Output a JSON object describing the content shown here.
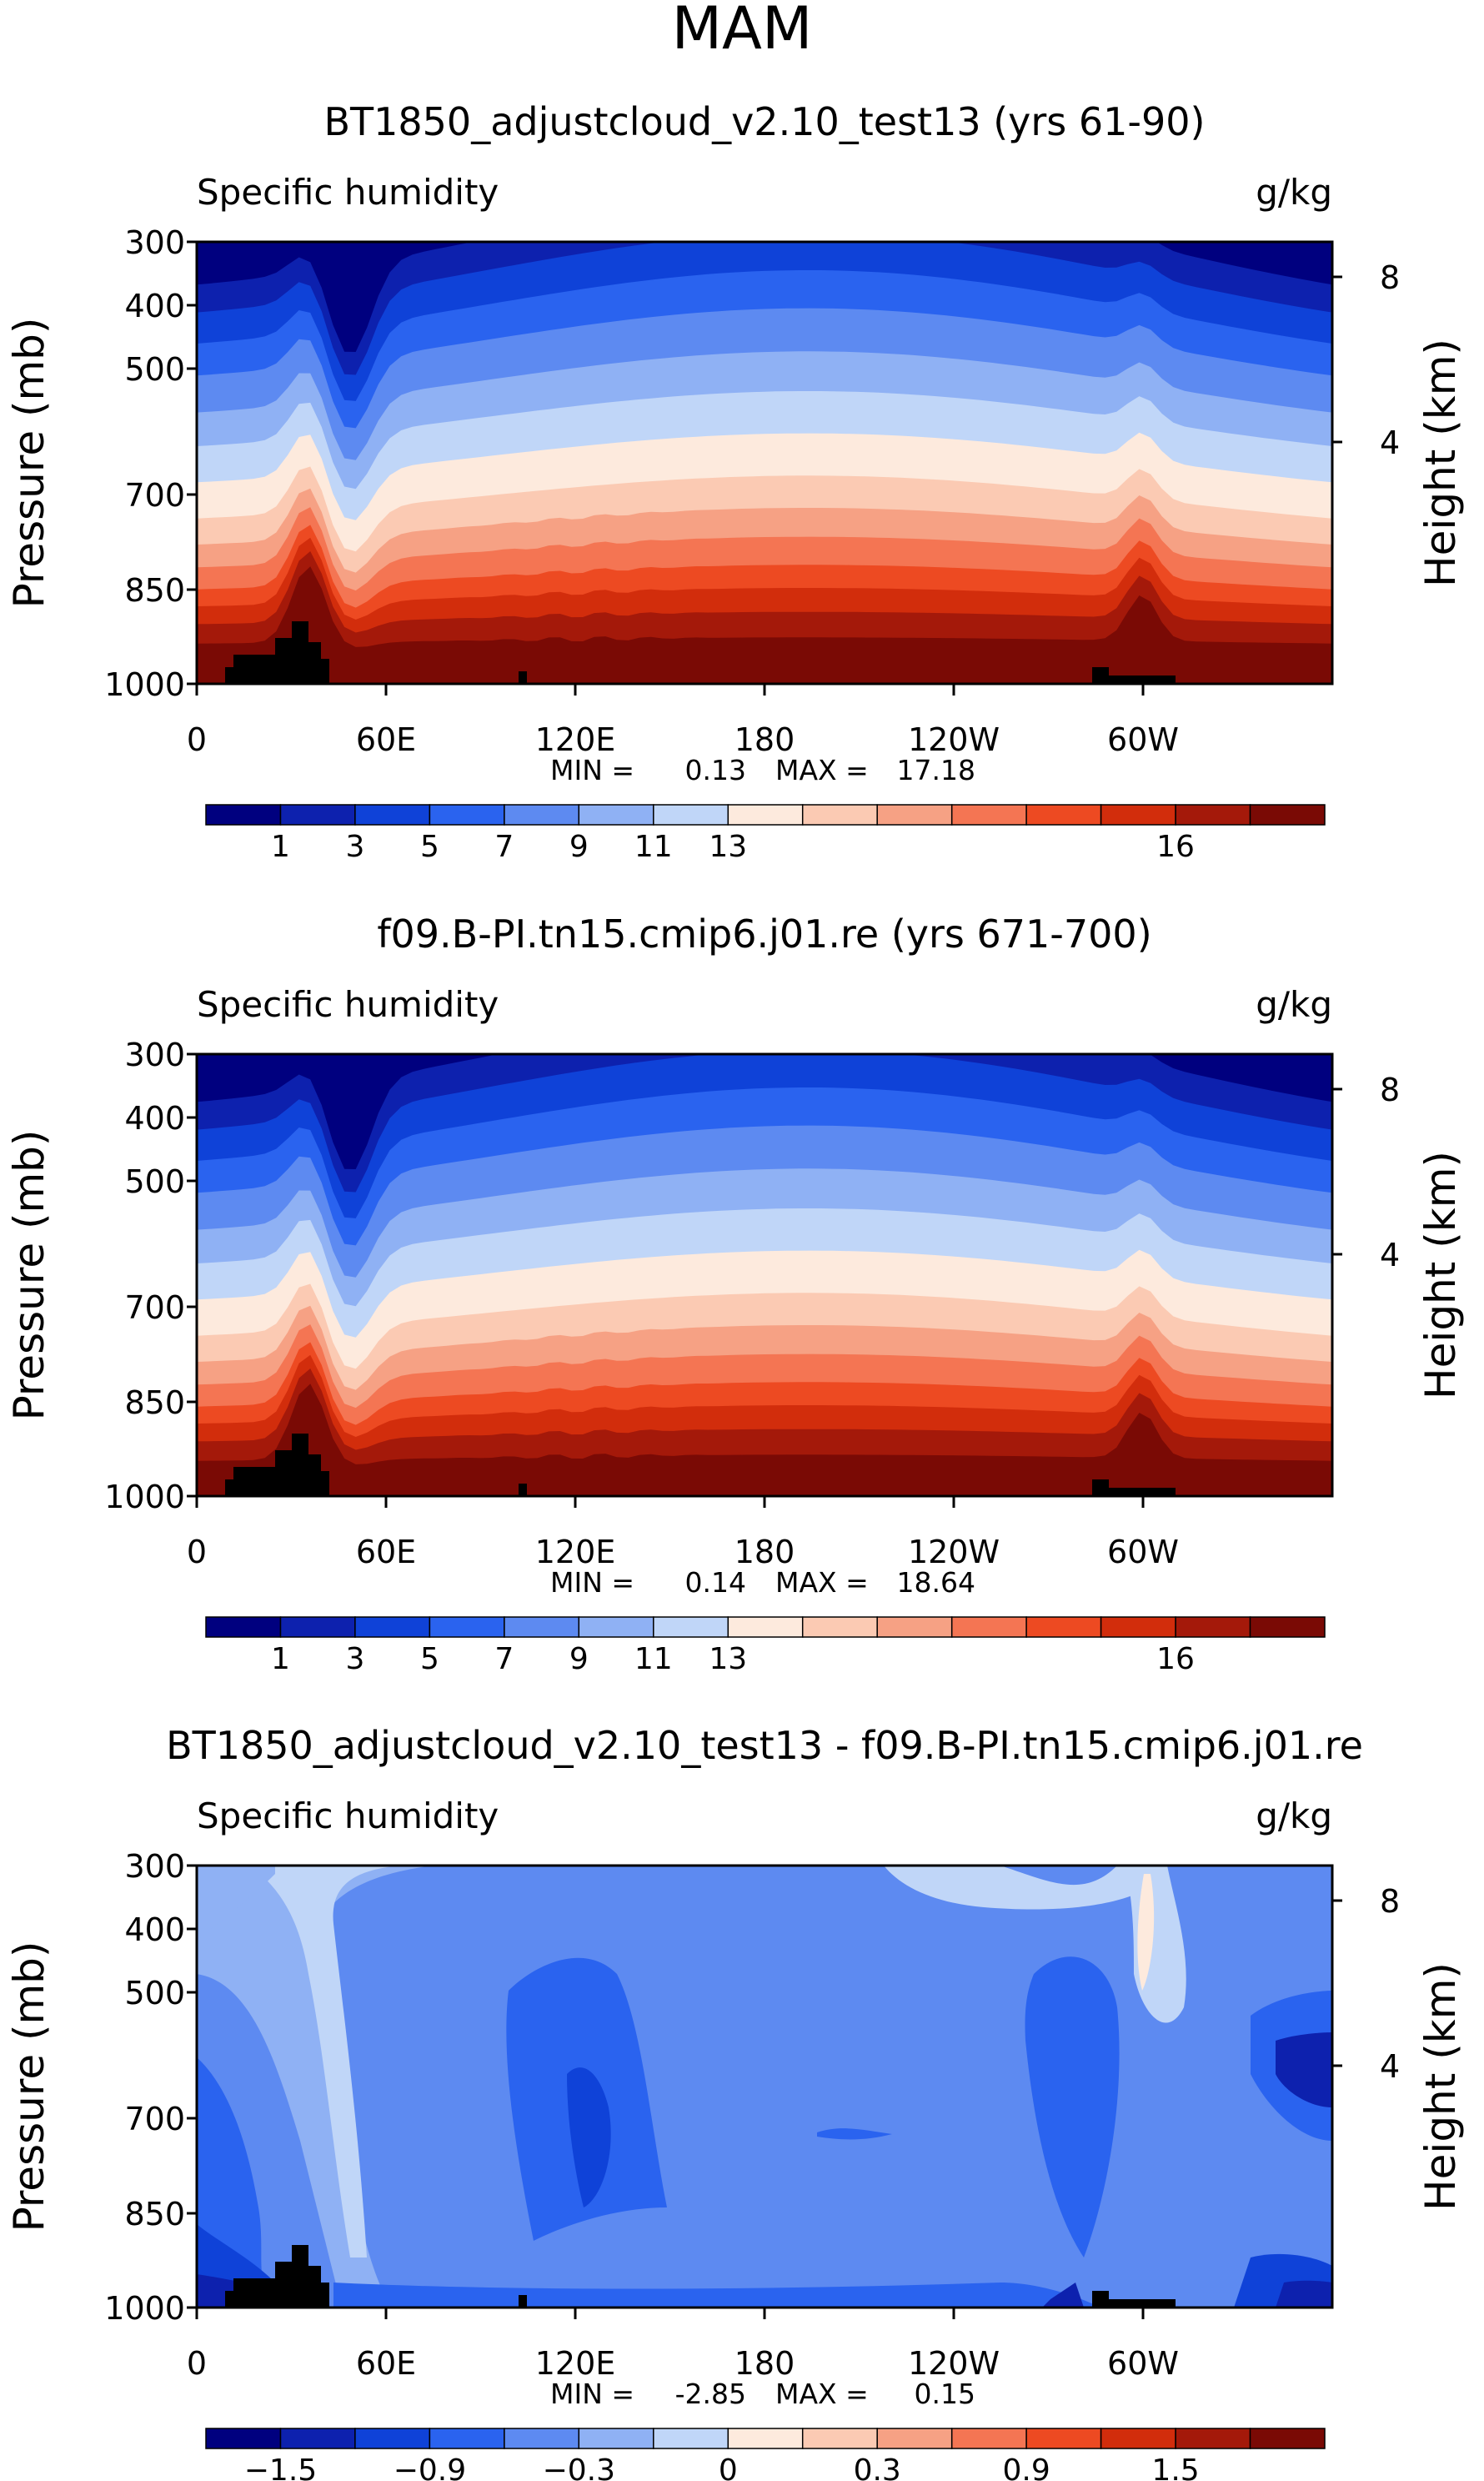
{
  "figure": {
    "title": "MAM"
  },
  "chart_data": [
    {
      "type": "contour",
      "title": "BT1850_adjustcloud_v2.10_test13 (yrs 61-90)",
      "variable": "Specific humidity",
      "units": "g/kg",
      "ylabel": "Pressure (mb)",
      "y2label": "Height (km)",
      "yticks": [
        "300",
        "400",
        "500",
        "700",
        "850",
        "1000"
      ],
      "y2ticks": [
        "8",
        "4"
      ],
      "xticks": [
        "0",
        "60E",
        "120E",
        "180",
        "120W",
        "60W"
      ],
      "min_label": "MIN =",
      "min_value": "0.13",
      "max_label": "MAX =",
      "max_value": "17.18",
      "min": 0.13,
      "max": 17.18,
      "colorbar_labels": [
        "1",
        "3",
        "5",
        "7",
        "9",
        "11",
        "13",
        "16"
      ],
      "colorbar_colors": [
        "#00007f",
        "#0d21ae",
        "#0f42d8",
        "#2a63ef",
        "#5d8af1",
        "#8fb1f4",
        "#c0d6f8",
        "#fdeadd",
        "#fbcab3",
        "#f6a184",
        "#f47553",
        "#ed4a22",
        "#d22d0c",
        "#a4190a",
        "#7a0a05"
      ],
      "mode": "abs"
    },
    {
      "type": "contour",
      "title": "f09.B-PI.tn15.cmip6.j01.re (yrs 671-700)",
      "variable": "Specific humidity",
      "units": "g/kg",
      "ylabel": "Pressure (mb)",
      "y2label": "Height (km)",
      "yticks": [
        "300",
        "400",
        "500",
        "700",
        "850",
        "1000"
      ],
      "y2ticks": [
        "8",
        "4"
      ],
      "xticks": [
        "0",
        "60E",
        "120E",
        "180",
        "120W",
        "60W"
      ],
      "min_label": "MIN =",
      "min_value": "0.14",
      "max_label": "MAX =",
      "max_value": "18.64",
      "min": 0.14,
      "max": 18.64,
      "colorbar_labels": [
        "1",
        "3",
        "5",
        "7",
        "9",
        "11",
        "13",
        "16"
      ],
      "colorbar_colors": [
        "#00007f",
        "#0d21ae",
        "#0f42d8",
        "#2a63ef",
        "#5d8af1",
        "#8fb1f4",
        "#c0d6f8",
        "#fdeadd",
        "#fbcab3",
        "#f6a184",
        "#f47553",
        "#ed4a22",
        "#d22d0c",
        "#a4190a",
        "#7a0a05"
      ],
      "mode": "abs"
    },
    {
      "type": "contour",
      "title": "BT1850_adjustcloud_v2.10_test13 - f09.B-PI.tn15.cmip6.j01.re",
      "variable": "Specific humidity",
      "units": "g/kg",
      "ylabel": "Pressure (mb)",
      "y2label": "Height (km)",
      "yticks": [
        "300",
        "400",
        "500",
        "700",
        "850",
        "1000"
      ],
      "y2ticks": [
        "8",
        "4"
      ],
      "xticks": [
        "0",
        "60E",
        "120E",
        "180",
        "120W",
        "60W"
      ],
      "min_label": "MIN =",
      "min_value": "-2.85",
      "max_label": "MAX =",
      "max_value": "0.15",
      "min": -2.85,
      "max": 0.15,
      "colorbar_labels": [
        "−1.5",
        "−0.9",
        "−0.3",
        "0",
        "0.3",
        "0.9",
        "1.5"
      ],
      "colorbar_colors": [
        "#00007f",
        "#0d21ae",
        "#0f42d8",
        "#2a63ef",
        "#5d8af1",
        "#8fb1f4",
        "#c0d6f8",
        "#fdeadd",
        "#fbcab3",
        "#f6a184",
        "#f47553",
        "#ed4a22",
        "#d22d0c",
        "#a4190a",
        "#7a0a05"
      ],
      "mode": "diff"
    }
  ]
}
